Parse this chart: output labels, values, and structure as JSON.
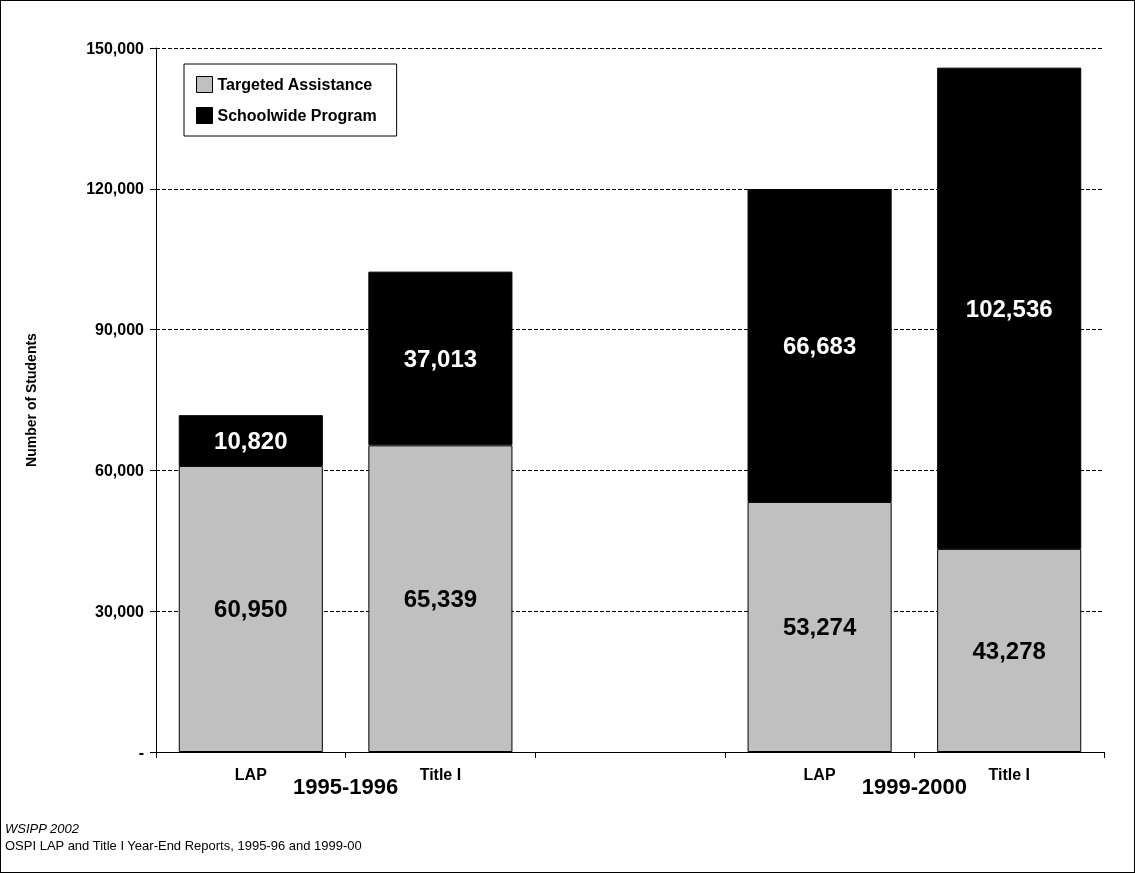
{
  "chart_data": {
    "type": "bar",
    "stacked": true,
    "ylabel": "Number of Students",
    "categories": [
      "LAP",
      "Title I",
      null,
      "LAP",
      "Title I"
    ],
    "series": [
      {
        "name": "Targeted Assistance",
        "color": "#c0c0c0",
        "values": [
          60950,
          65339,
          null,
          53274,
          43278
        ],
        "value_labels": [
          "60,950",
          "65,339",
          null,
          "53,274",
          "43,278"
        ]
      },
      {
        "name": "Schoolwide Program",
        "color": "#000000",
        "values": [
          10820,
          37013,
          null,
          66683,
          102536
        ],
        "value_labels": [
          "10,820",
          "37,013",
          null,
          "66,683",
          "102,536"
        ]
      }
    ],
    "ylim": [
      0,
      150000
    ],
    "yticks": [
      {
        "value": 0,
        "label": "-"
      },
      {
        "value": 30000,
        "label": "30,000"
      },
      {
        "value": 60000,
        "label": "60,000"
      },
      {
        "value": 90000,
        "label": "90,000"
      },
      {
        "value": 120000,
        "label": "120,000"
      },
      {
        "value": 150000,
        "label": "150,000"
      }
    ],
    "grid": "y",
    "legend": "top left",
    "annotations": [
      "1995-1996",
      "1999-2000",
      "WSIPP 2002",
      "OSPI LAP and Title I Year-End Reports, 1995-96 and 1999-00"
    ]
  }
}
